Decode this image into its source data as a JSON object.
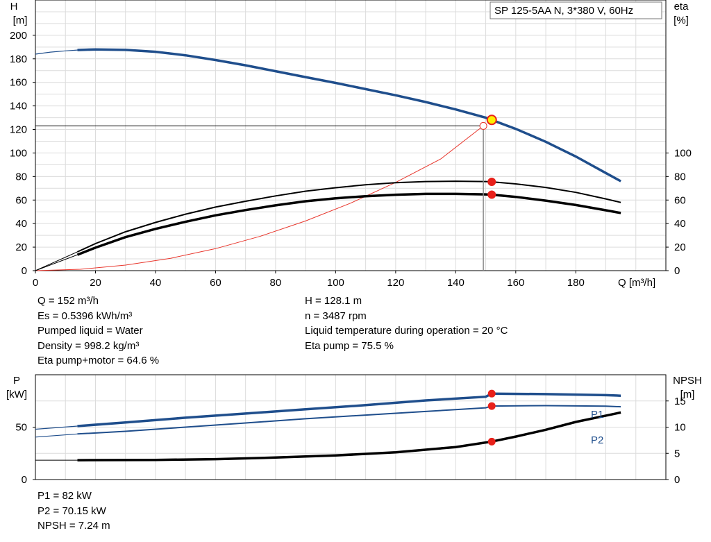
{
  "chart_data": [
    {
      "type": "line",
      "title": "SP 125-5AA N, 3*380 V, 60Hz",
      "xlabel": "Q [m³/h]",
      "ylabel_left": [
        "H",
        "[m]"
      ],
      "ylabel_right": [
        "eta",
        "[%]"
      ],
      "xlim": [
        0,
        210
      ],
      "ylim_left": [
        0,
        230
      ],
      "ylim_right": [
        0,
        230
      ],
      "x_ticks": [
        0,
        20,
        40,
        60,
        80,
        100,
        120,
        140,
        160,
        180
      ],
      "y_ticks_left": [
        0,
        20,
        40,
        60,
        80,
        100,
        120,
        140,
        160,
        180,
        200
      ],
      "y_ticks_right": [
        0,
        20,
        40,
        60,
        80,
        100
      ],
      "grid": true,
      "series": [
        {
          "axis": "left",
          "color": "#1f4e8c",
          "x": [
            14,
            20,
            30,
            40,
            50,
            60,
            70,
            80,
            90,
            100,
            110,
            120,
            130,
            140,
            150,
            152,
            160,
            170,
            180,
            190,
            195
          ],
          "values": [
            187.5,
            188,
            187.6,
            186,
            183,
            179,
            174.5,
            169.5,
            164.5,
            159.5,
            154.3,
            149,
            143.3,
            137,
            130,
            128.1,
            120.5,
            109.5,
            97,
            83,
            76
          ]
        },
        {
          "axis": "left",
          "color": "#1f4e8c",
          "style": "extrapolated",
          "x": [
            0,
            5,
            10,
            14
          ],
          "values": [
            184,
            185.7,
            186.8,
            187.5
          ]
        },
        {
          "axis": "right",
          "color": "#000000",
          "x": [
            14,
            20,
            30,
            40,
            50,
            60,
            70,
            80,
            90,
            100,
            110,
            120,
            130,
            140,
            150,
            152,
            160,
            170,
            180,
            190,
            195
          ],
          "values": [
            16,
            23,
            33,
            41,
            48,
            54,
            59,
            63.5,
            67.5,
            70.5,
            73,
            74.8,
            75.7,
            76,
            75.7,
            75.5,
            73.7,
            70.7,
            66.5,
            61,
            58
          ]
        },
        {
          "axis": "right",
          "color": "#000000",
          "x": [
            14,
            20,
            30,
            40,
            50,
            60,
            70,
            80,
            90,
            100,
            110,
            120,
            130,
            140,
            150,
            152,
            160,
            170,
            180,
            190,
            195
          ],
          "values": [
            13.5,
            19.5,
            28.5,
            35.5,
            41.5,
            47,
            51.5,
            55.5,
            59,
            61.5,
            63.3,
            64.5,
            65.2,
            65.2,
            64.8,
            64.6,
            62.7,
            59.5,
            55.8,
            51.3,
            49
          ]
        },
        {
          "axis": "left",
          "color": "#e8352b",
          "style": "system-curve",
          "x": [
            0,
            15,
            30,
            45,
            60,
            75,
            90,
            105,
            120,
            135,
            149.2
          ],
          "values": [
            0,
            1.2,
            4.7,
            10.5,
            18.7,
            29.3,
            42.2,
            57.4,
            75,
            94.9,
            123
          ]
        }
      ],
      "operating_point": {
        "x": 152,
        "H": 128.1,
        "eta_pump_motor": 64.6,
        "eta_pump": 75.5,
        "system_point": {
          "x": 149.2,
          "H": 123
        }
      }
    },
    {
      "type": "line",
      "ylabel_left": [
        "P",
        "[kW]"
      ],
      "ylabel_right": [
        "NPSH",
        "[m]"
      ],
      "xlim": [
        0,
        210
      ],
      "ylim_left": [
        0,
        100
      ],
      "ylim_right": [
        0,
        20
      ],
      "y_ticks_left": [
        0,
        50
      ],
      "y_ticks_right": [
        0,
        5,
        10,
        15
      ],
      "grid": true,
      "series": [
        {
          "name": "P1",
          "axis": "left",
          "color": "#1f4e8c",
          "x": [
            14,
            30,
            50,
            70,
            90,
            110,
            130,
            150,
            152,
            170,
            190,
            195
          ],
          "values": [
            51,
            54.5,
            59,
            63,
            67,
            71,
            75.5,
            79,
            82,
            81.5,
            80.5,
            80
          ]
        },
        {
          "axis": "left",
          "color": "#1f4e8c",
          "style": "extrapolated",
          "x": [
            0,
            14
          ],
          "values": [
            48,
            51
          ]
        },
        {
          "name": "P2",
          "axis": "left",
          "color": "#1f4e8c",
          "x": [
            14,
            30,
            50,
            70,
            90,
            110,
            130,
            150,
            152,
            170,
            190,
            195
          ],
          "values": [
            43.5,
            46,
            50,
            54,
            58,
            61.5,
            65,
            68.5,
            70.15,
            70.5,
            70,
            69.5
          ]
        },
        {
          "axis": "left",
          "color": "#1f4e8c",
          "style": "extrapolated",
          "x": [
            0,
            14
          ],
          "values": [
            40.5,
            43.5
          ]
        },
        {
          "name": "NPSH",
          "axis": "right",
          "color": "#000000",
          "x": [
            14,
            40,
            60,
            80,
            100,
            120,
            140,
            152,
            160,
            170,
            180,
            190,
            195
          ],
          "values": [
            3.7,
            3.75,
            3.9,
            4.2,
            4.6,
            5.2,
            6.2,
            7.24,
            8.2,
            9.5,
            11,
            12.2,
            12.8
          ]
        },
        {
          "axis": "right",
          "color": "#000000",
          "style": "extrapolated",
          "x": [
            0,
            14
          ],
          "values": [
            3.7,
            3.7
          ]
        }
      ],
      "labels": {
        "p1": "P1",
        "p2": "P2"
      },
      "operating_point": {
        "x": 152,
        "P1": 82,
        "P2": 70.15,
        "NPSH": 7.24
      }
    }
  ],
  "results_top_left": [
    "Q = 152 m³/h",
    "Es = 0.5396 kWh/m³",
    "Pumped liquid = Water",
    "Density = 998.2 kg/m³",
    "Eta pump+motor = 64.6 %"
  ],
  "results_top_right": [
    "H = 128.1 m",
    "n = 3487 rpm",
    "Liquid temperature during operation = 20 °C",
    "Eta pump = 75.5 %"
  ],
  "results_bottom": [
    "P1 = 82 kW",
    "P2 = 70.15 kW",
    "NPSH = 7.24 m"
  ]
}
